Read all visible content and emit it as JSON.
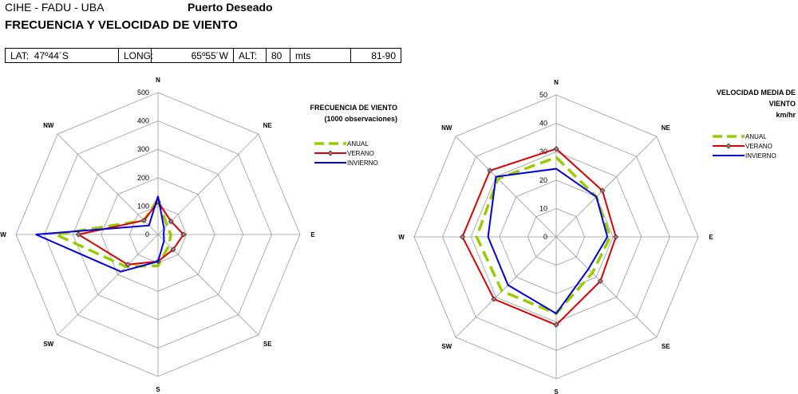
{
  "header": {
    "org": "CIHE - FADU - UBA",
    "place": "Puerto Deseado",
    "title": "FRECUENCIA Y VELOCIDAD DE VIENTO"
  },
  "info": {
    "lat_label": "LAT:",
    "lat_value": "47º44´S",
    "long_label": "LONG:",
    "long_value": "65º55´W",
    "alt_label": "ALT:",
    "alt_value": "80",
    "alt_unit": "mts",
    "period": "81-90"
  },
  "colors": {
    "anual": "#99cc00",
    "verano": "#dd0000",
    "invierno": "#0000dd",
    "grid": "#999999"
  },
  "chart_data": [
    {
      "type": "radar",
      "title": "FRECUENCIA DE VIENTO",
      "subtitle": "(1000 observaciones)",
      "directions": [
        "N",
        "NE",
        "E",
        "SE",
        "S",
        "SW",
        "W",
        "NW"
      ],
      "rmax": 500,
      "ticks": [
        "0",
        "100",
        "200",
        "300",
        "400",
        "500"
      ],
      "series": [
        {
          "name": "ANUAL",
          "values": [
            125,
            45,
            45,
            55,
            110,
            160,
            360,
            70
          ]
        },
        {
          "name": "VERANO",
          "values": [
            115,
            65,
            90,
            75,
            95,
            150,
            280,
            70
          ]
        },
        {
          "name": "INVIERNO",
          "values": [
            135,
            30,
            20,
            30,
            95,
            185,
            430,
            45
          ]
        }
      ]
    },
    {
      "type": "radar",
      "title": "VELOCIDAD MEDIA DE VIENTO",
      "subtitle": "km/hr",
      "directions": [
        "N",
        "NE",
        "E",
        "SE",
        "S",
        "SW",
        "W",
        "NW"
      ],
      "rmax": 50,
      "ticks": [
        "0",
        "10",
        "20",
        "30",
        "40",
        "50"
      ],
      "series": [
        {
          "name": "ANUAL",
          "values": [
            28,
            20,
            19,
            18,
            27,
            27,
            28,
            29
          ]
        },
        {
          "name": "VERANO",
          "values": [
            31,
            23,
            21,
            22,
            31,
            31,
            33,
            33
          ]
        },
        {
          "name": "INVIERNO",
          "values": [
            24,
            20,
            18,
            16,
            27,
            24,
            24,
            30
          ]
        }
      ]
    }
  ]
}
